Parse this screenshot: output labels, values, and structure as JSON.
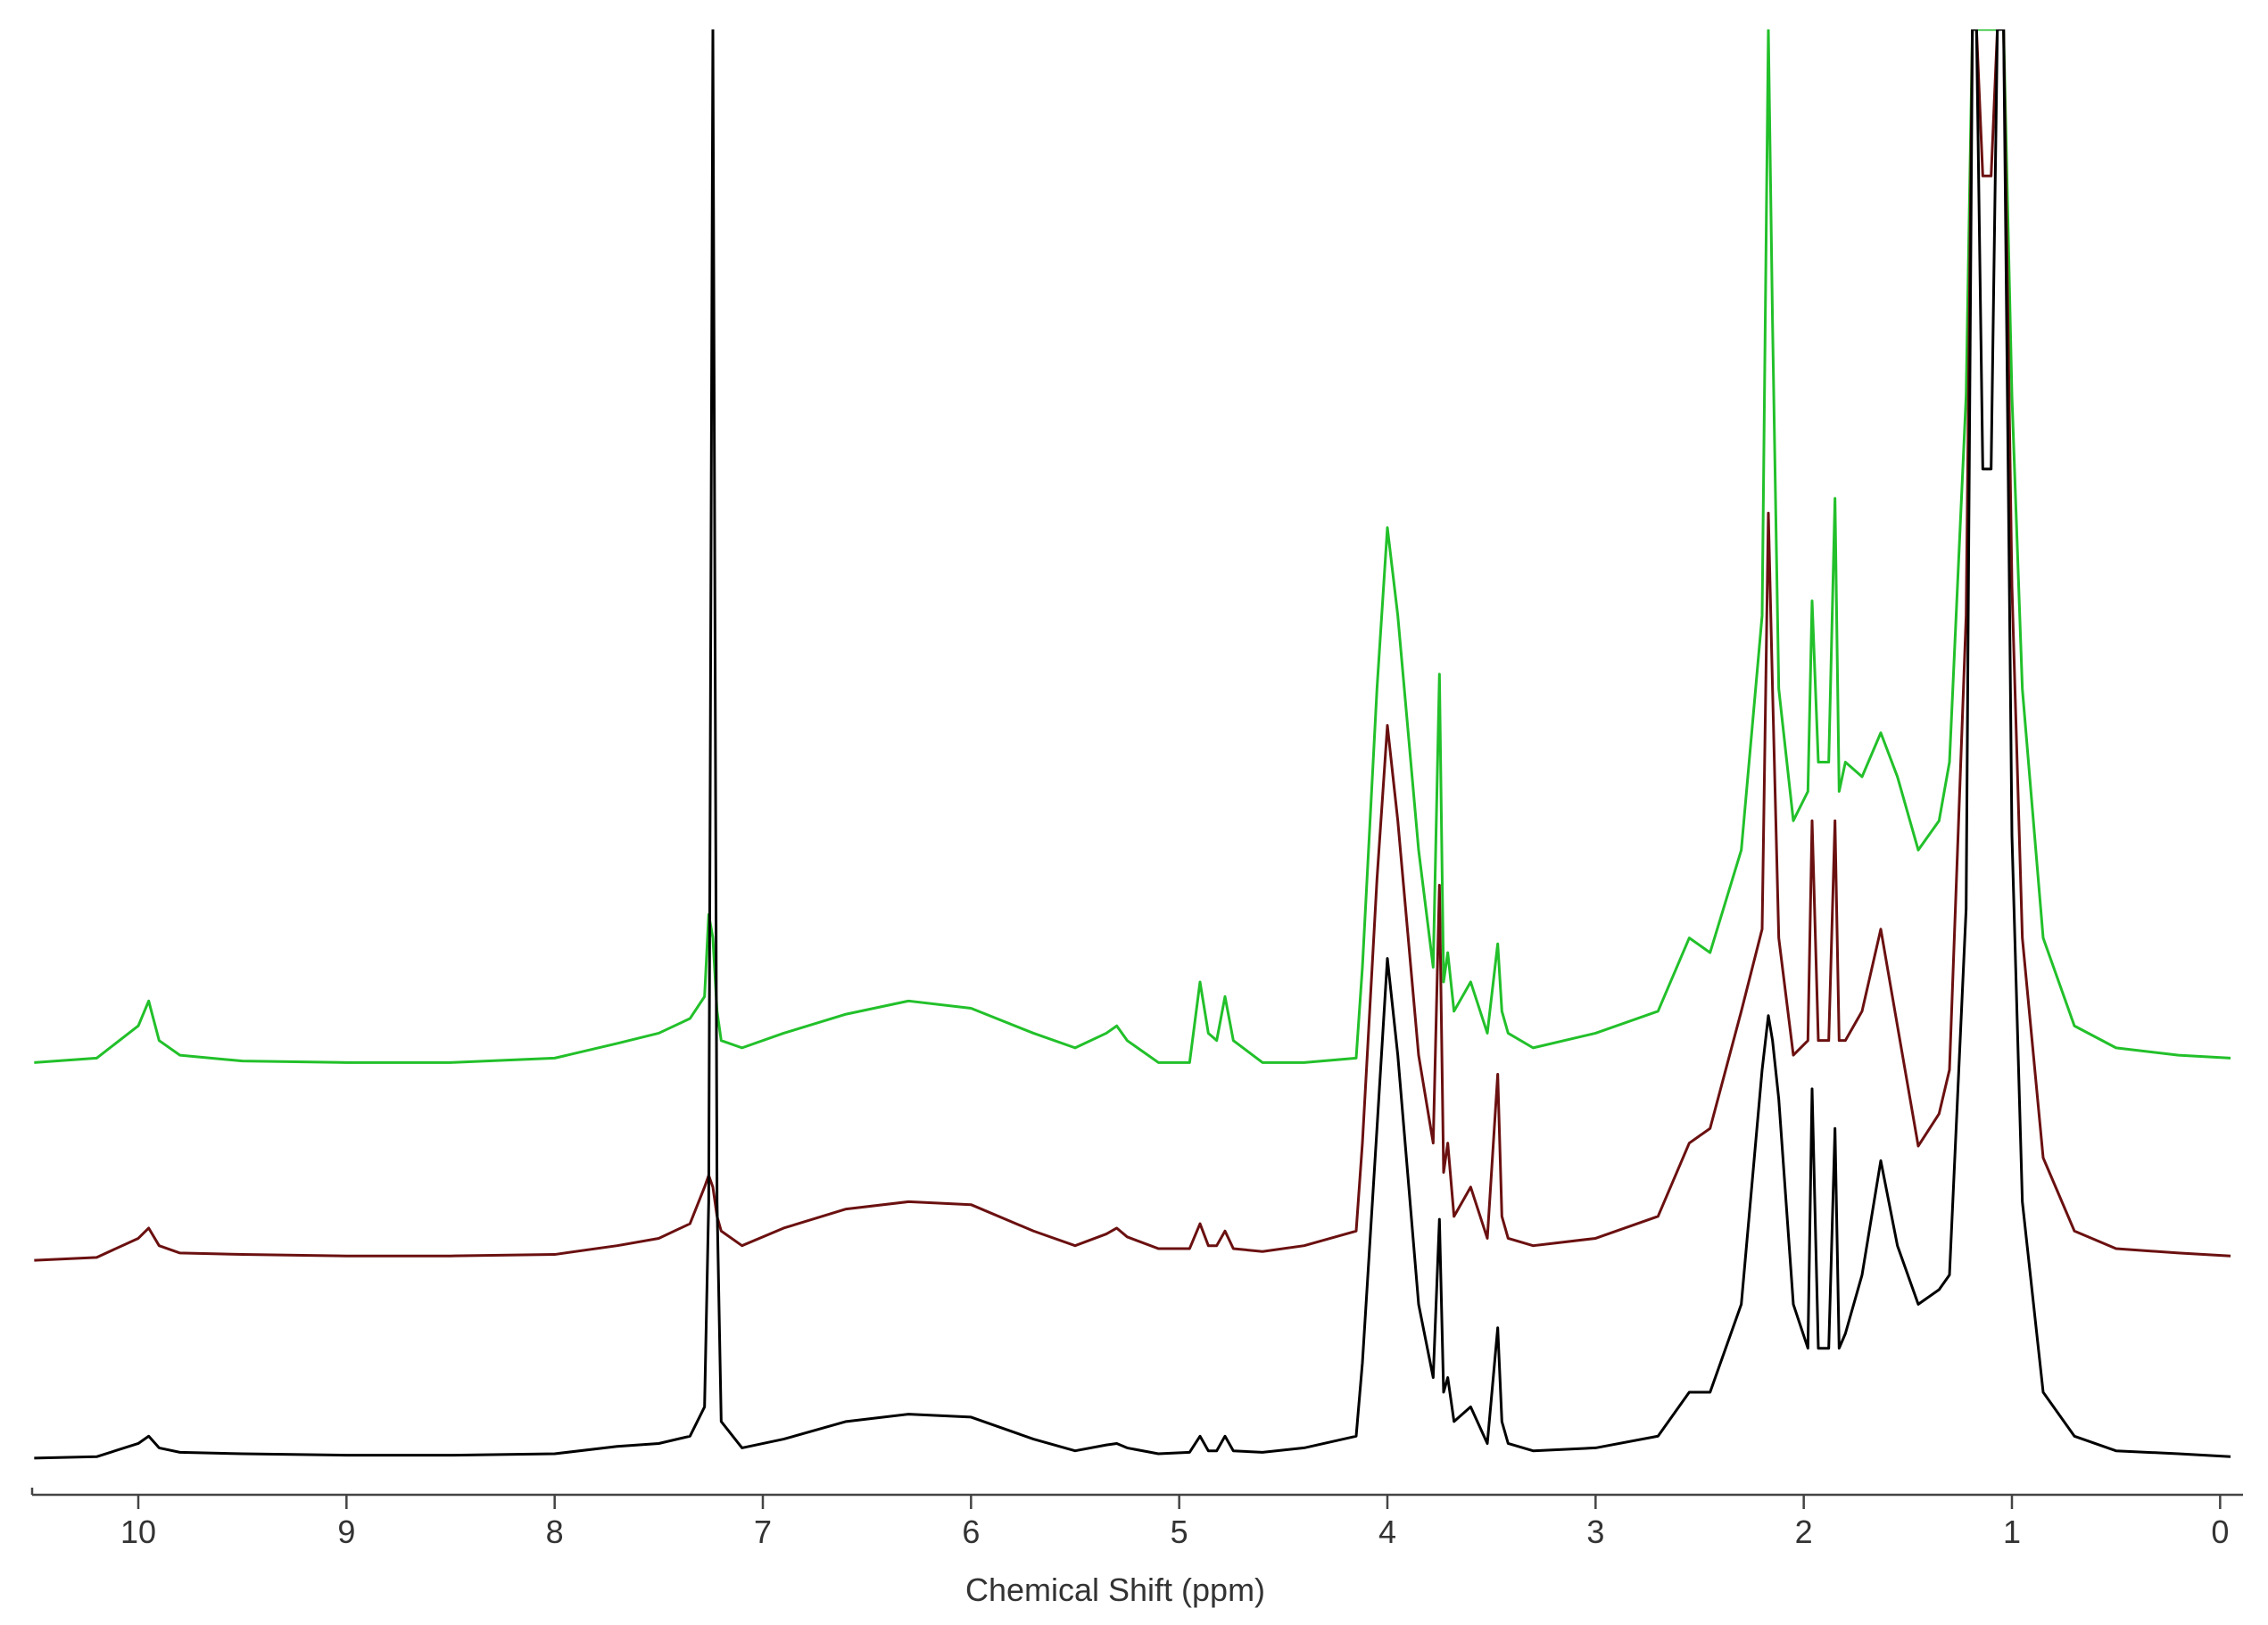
{
  "chart_data": {
    "type": "line",
    "xlabel": "Chemical Shift (ppm)",
    "xlim": [
      10.51,
      -0.11
    ],
    "ylim": [
      0,
      100
    ],
    "xticks": [
      10,
      9,
      8,
      7,
      6,
      5,
      4,
      3,
      2,
      1,
      0
    ],
    "x": [
      10.5,
      10.2,
      10.0,
      9.95,
      9.9,
      9.8,
      9.5,
      9.0,
      8.5,
      8.0,
      7.7,
      7.5,
      7.35,
      7.28,
      7.26,
      7.24,
      7.22,
      7.2,
      7.1,
      6.9,
      6.6,
      6.3,
      6.0,
      5.7,
      5.5,
      5.35,
      5.3,
      5.25,
      5.1,
      4.95,
      4.9,
      4.86,
      4.82,
      4.78,
      4.74,
      4.6,
      4.4,
      4.15,
      4.12,
      4.05,
      4.0,
      3.95,
      3.85,
      3.78,
      3.75,
      3.73,
      3.71,
      3.68,
      3.6,
      3.52,
      3.47,
      3.45,
      3.42,
      3.3,
      3.0,
      2.7,
      2.55,
      2.45,
      2.3,
      2.2,
      2.17,
      2.15,
      2.12,
      2.05,
      1.98,
      1.96,
      1.93,
      1.88,
      1.85,
      1.83,
      1.8,
      1.72,
      1.63,
      1.55,
      1.45,
      1.35,
      1.3,
      1.22,
      1.19,
      1.17,
      1.14,
      1.1,
      1.07,
      1.04,
      1.0,
      0.95,
      0.85,
      0.7,
      0.5,
      0.2,
      -0.05
    ],
    "series": [
      {
        "color": "#22c02a",
        "values": [
          29.5,
          29.8,
          32,
          33.7,
          31,
          30,
          29.6,
          29.5,
          29.5,
          29.8,
          30.8,
          31.5,
          32.5,
          34,
          39.6,
          38,
          33,
          31,
          30.5,
          31.5,
          32.8,
          33.7,
          33.2,
          31.5,
          30.5,
          31.5,
          32,
          31,
          29.5,
          29.5,
          35,
          31.5,
          31,
          34,
          31,
          29.5,
          29.5,
          29.8,
          36,
          55,
          66,
          60,
          44,
          36,
          56,
          35,
          37,
          33,
          35,
          31.5,
          37.6,
          33,
          31.5,
          30.5,
          31.5,
          33,
          38,
          37,
          44,
          60,
          100,
          80,
          55,
          46,
          48,
          61,
          50,
          50,
          68,
          48,
          50,
          49,
          52,
          49,
          44,
          46,
          50,
          75,
          100,
          100,
          100,
          100,
          100,
          100,
          75,
          55,
          38,
          32,
          30.5,
          30,
          29.8
        ]
      },
      {
        "color": "#6b1010",
        "values": [
          16.0,
          16.2,
          17.5,
          18.2,
          17.0,
          16.5,
          16.4,
          16.3,
          16.3,
          16.4,
          17.0,
          17.5,
          18.5,
          21,
          21.8,
          21,
          19,
          18,
          17.0,
          18.2,
          19.5,
          20.0,
          19.8,
          18.0,
          17.0,
          17.8,
          18.2,
          17.6,
          16.8,
          16.8,
          18.5,
          17.0,
          17.0,
          18.0,
          16.8,
          16.6,
          17.0,
          18.0,
          24,
          42,
          52.5,
          46,
          30,
          24,
          41.6,
          22,
          24,
          19,
          21,
          17.5,
          28.7,
          19,
          17.5,
          17.0,
          17.5,
          19,
          24,
          25,
          33,
          38.6,
          67,
          55,
          38,
          30,
          31,
          46,
          31,
          31,
          46,
          31,
          31,
          33,
          38.6,
          32,
          23.8,
          26,
          29,
          60,
          100,
          100,
          90,
          90,
          100,
          100,
          62,
          38,
          23,
          18,
          16.8,
          16.5,
          16.3
        ]
      },
      {
        "color": "#000000",
        "values": [
          2.5,
          2.6,
          3.5,
          4.0,
          3.2,
          2.9,
          2.8,
          2.7,
          2.7,
          2.8,
          3.3,
          3.5,
          4.0,
          6,
          20,
          100,
          20,
          5,
          3.2,
          3.8,
          5.0,
          5.5,
          5.3,
          3.8,
          3.0,
          3.4,
          3.5,
          3.2,
          2.8,
          2.9,
          4.0,
          3.0,
          3.0,
          4.0,
          3.0,
          2.9,
          3.2,
          4.0,
          9,
          25,
          36.6,
          30,
          13,
          8,
          18.8,
          7,
          8,
          5,
          6,
          3.5,
          11.4,
          5,
          3.5,
          3.0,
          3.2,
          4,
          7,
          7,
          13,
          29,
          32.7,
          31,
          27,
          13,
          10,
          27.7,
          10,
          10,
          25,
          10,
          11,
          15,
          22.8,
          17,
          13,
          14,
          15,
          40,
          100,
          100,
          70,
          70,
          100,
          100,
          45,
          20,
          7,
          4,
          3,
          2.8,
          2.6
        ]
      }
    ]
  }
}
